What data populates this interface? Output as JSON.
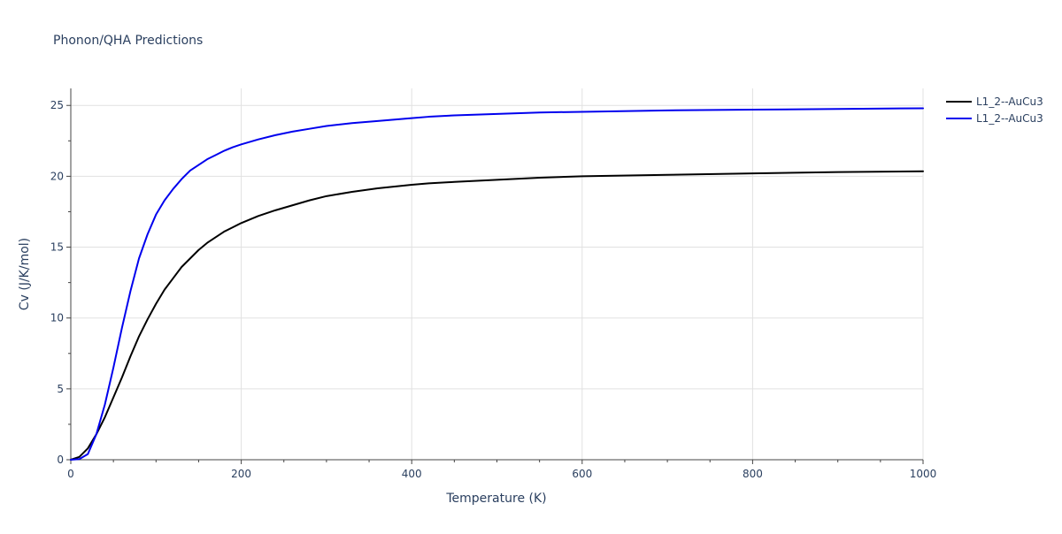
{
  "chart_data": {
    "type": "line",
    "title": "Phonon/QHA Predictions",
    "xlabel": "Temperature (K)",
    "ylabel": "Cv (J/K/mol)",
    "xlim": [
      0,
      1000
    ],
    "ylim": [
      0,
      26.2
    ],
    "x_ticks": [
      0,
      200,
      400,
      600,
      800,
      1000
    ],
    "x_tick_labels": [
      "0",
      "200",
      "400",
      "600",
      "800",
      "1000"
    ],
    "y_ticks": [
      0,
      5,
      10,
      15,
      20,
      25
    ],
    "y_tick_labels": [
      "0",
      "5",
      "10",
      "15",
      "20",
      "25"
    ],
    "grid": true,
    "legend_position": "top-right",
    "series": [
      {
        "name": "L1_2--AuCu3",
        "color": "#000000",
        "x": [
          0,
          10,
          20,
          30,
          40,
          50,
          60,
          70,
          80,
          90,
          100,
          110,
          120,
          130,
          140,
          150,
          160,
          170,
          180,
          190,
          200,
          220,
          240,
          260,
          280,
          300,
          330,
          360,
          400,
          420,
          450,
          500,
          550,
          600,
          700,
          800,
          900,
          1000
        ],
        "y": [
          0,
          0.2,
          0.8,
          1.8,
          3.0,
          4.4,
          5.8,
          7.3,
          8.7,
          9.9,
          11.0,
          12.0,
          12.8,
          13.6,
          14.2,
          14.8,
          15.3,
          15.7,
          16.1,
          16.4,
          16.7,
          17.2,
          17.6,
          17.95,
          18.3,
          18.6,
          18.9,
          19.15,
          19.4,
          19.5,
          19.6,
          19.75,
          19.9,
          20.0,
          20.1,
          20.2,
          20.3,
          20.35
        ]
      },
      {
        "name": "L1_2--AuCu3",
        "color": "#0000ee",
        "x": [
          0,
          10,
          20,
          30,
          40,
          50,
          60,
          70,
          80,
          90,
          100,
          110,
          120,
          130,
          140,
          150,
          160,
          170,
          180,
          190,
          200,
          220,
          240,
          260,
          280,
          300,
          330,
          360,
          400,
          420,
          450,
          500,
          550,
          600,
          700,
          800,
          900,
          1000
        ],
        "y": [
          0,
          0.05,
          0.4,
          1.8,
          3.9,
          6.5,
          9.3,
          11.9,
          14.2,
          15.9,
          17.3,
          18.3,
          19.1,
          19.8,
          20.4,
          20.8,
          21.2,
          21.5,
          21.8,
          22.05,
          22.25,
          22.6,
          22.9,
          23.15,
          23.35,
          23.55,
          23.75,
          23.9,
          24.1,
          24.2,
          24.3,
          24.4,
          24.5,
          24.55,
          24.65,
          24.7,
          24.75,
          24.8
        ]
      }
    ]
  }
}
